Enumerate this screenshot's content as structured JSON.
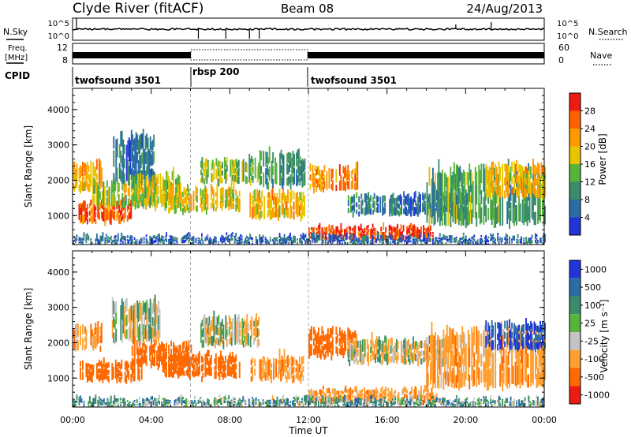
{
  "header": {
    "station": "Clyde River (fitACF)",
    "beam": "Beam 08",
    "date": "24/Aug/2013"
  },
  "top_panels": {
    "nsky_label": "N.Sky",
    "nsearch_label": "N.Search",
    "nsky_ticks": [
      "10^5",
      "10^0"
    ],
    "nsearch_ticks": [
      "10^5",
      "10^0"
    ],
    "freq_label_line1": "Freq.",
    "freq_label_line2": "[MHz]",
    "freq_ticks": [
      "12",
      "8"
    ],
    "nave_label": "Nave",
    "nave_ticks": [
      "60",
      "0"
    ],
    "cpid_label": "CPID",
    "cpid_segments": [
      {
        "label": "twofsound 3501",
        "start_hour": 0,
        "end_hour": 6
      },
      {
        "label": "rbsp 200",
        "start_hour": 6,
        "end_hour": 12
      },
      {
        "label": "twofsound 3501",
        "start_hour": 12,
        "end_hour": 24
      }
    ]
  },
  "chart_data": [
    {
      "type": "heatmap",
      "parameter": "Power",
      "ylabel": "Slant Range [km]",
      "x_range_hours": [
        0,
        24
      ],
      "ylim": [
        180,
        4600
      ],
      "yticks": [
        "1000",
        "2000",
        "3000",
        "4000"
      ],
      "colorbar_label": "Power [dB]",
      "colorbar_ticks": [
        "4",
        "8",
        "12",
        "16",
        "20",
        "24",
        "28"
      ],
      "colorbar_range": [
        0,
        32
      ],
      "colors": [
        "#2034d8",
        "#2a6ca8",
        "#3a8c6a",
        "#56b43a",
        "#e8c400",
        "#ff9a00",
        "#ff6000",
        "#ee1c10"
      ],
      "echo_regions": [
        {
          "t0": 0.0,
          "t1": 1.5,
          "r0": 1700,
          "r1": 2500,
          "value": 20
        },
        {
          "t0": 0.3,
          "t1": 3.0,
          "r0": 800,
          "r1": 1400,
          "value": 26
        },
        {
          "t0": 1.0,
          "t1": 4.2,
          "r0": 1200,
          "r1": 2000,
          "value": 16
        },
        {
          "t0": 2.0,
          "t1": 4.2,
          "r0": 1900,
          "r1": 3300,
          "value": 8
        },
        {
          "t0": 3.0,
          "t1": 5.5,
          "r0": 1300,
          "r1": 2200,
          "value": 16
        },
        {
          "t0": 4.5,
          "t1": 8.5,
          "r0": 1100,
          "r1": 1800,
          "value": 18
        },
        {
          "t0": 6.5,
          "t1": 9.5,
          "r0": 1900,
          "r1": 2600,
          "value": 14
        },
        {
          "t0": 9.0,
          "t1": 11.8,
          "r0": 900,
          "r1": 1700,
          "value": 20
        },
        {
          "t0": 9.5,
          "t1": 11.8,
          "r0": 1800,
          "r1": 2800,
          "value": 10
        },
        {
          "t0": 12.0,
          "t1": 14.5,
          "r0": 1700,
          "r1": 2400,
          "value": 24
        },
        {
          "t0": 12.0,
          "t1": 18.5,
          "r0": 300,
          "r1": 700,
          "value": 28
        },
        {
          "t0": 14.0,
          "t1": 20.0,
          "r0": 1000,
          "r1": 1600,
          "value": 8
        },
        {
          "t0": 18.0,
          "t1": 24.0,
          "r0": 700,
          "r1": 2400,
          "value": 12
        },
        {
          "t0": 21.0,
          "t1": 24.0,
          "r0": 1500,
          "r1": 2500,
          "value": 20
        },
        {
          "t0": 0.0,
          "t1": 24.0,
          "r0": 200,
          "r1": 420,
          "value": 6
        }
      ]
    },
    {
      "type": "heatmap",
      "parameter": "Velocity",
      "ylabel": "Slant Range [km]",
      "xlabel": "Time UT",
      "x_range_hours": [
        0,
        24
      ],
      "xticks": [
        "00:00",
        "04:00",
        "08:00",
        "12:00",
        "16:00",
        "20:00",
        "00:00"
      ],
      "ylim": [
        180,
        4600
      ],
      "yticks": [
        "1000",
        "2000",
        "3000",
        "4000"
      ],
      "colorbar_label": "Velocity [m s⁻¹]",
      "colorbar_ticks": [
        "1000",
        "500",
        "100",
        "25",
        "-25",
        "-100",
        "-500",
        "-1000"
      ],
      "colors": [
        "#2034d8",
        "#2a6ca8",
        "#3a8c6a",
        "#56b43a",
        "#c4c4c4",
        "#ffa030",
        "#ff6a00",
        "#ee1c10"
      ],
      "echo_regions": [
        {
          "t0": 0.0,
          "t1": 1.5,
          "r0": 1800,
          "r1": 2500,
          "value": -100
        },
        {
          "t0": 0.3,
          "t1": 3.5,
          "r0": 900,
          "r1": 1500,
          "value": -500
        },
        {
          "t0": 2.0,
          "t1": 4.5,
          "r0": 2000,
          "r1": 3200,
          "value": 0
        },
        {
          "t0": 3.0,
          "t1": 6.0,
          "r0": 1300,
          "r1": 2000,
          "value": -300
        },
        {
          "t0": 4.5,
          "t1": 8.5,
          "r0": 1000,
          "r1": 1700,
          "value": -500
        },
        {
          "t0": 6.5,
          "t1": 9.5,
          "r0": 1900,
          "r1": 2700,
          "value": 0
        },
        {
          "t0": 9.0,
          "t1": 11.8,
          "r0": 900,
          "r1": 1600,
          "value": -100
        },
        {
          "t0": 12.0,
          "t1": 14.5,
          "r0": 1600,
          "r1": 2400,
          "value": -500
        },
        {
          "t0": 12.0,
          "t1": 18.5,
          "r0": 300,
          "r1": 700,
          "value": -100
        },
        {
          "t0": 14.0,
          "t1": 19.0,
          "r0": 1400,
          "r1": 2100,
          "value": 0
        },
        {
          "t0": 18.0,
          "t1": 24.0,
          "r0": 700,
          "r1": 2400,
          "value": -100
        },
        {
          "t0": 21.0,
          "t1": 24.0,
          "r0": 1800,
          "r1": 2600,
          "value": 500
        },
        {
          "t0": 0.0,
          "t1": 24.0,
          "r0": 200,
          "r1": 420,
          "value": 60
        }
      ]
    }
  ]
}
